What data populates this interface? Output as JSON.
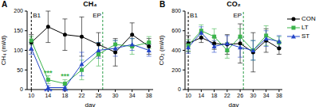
{
  "chart_data": [
    {
      "type": "line",
      "panel_label": "A",
      "title": "CH₄",
      "x_label": "day",
      "y_label": "CH₄ (ml/d)",
      "x": [
        10,
        14,
        18,
        22,
        26,
        30,
        34,
        38
      ],
      "xlim": [
        9,
        39
      ],
      "xticks": [
        10,
        14,
        18,
        22,
        26,
        30,
        34,
        38
      ],
      "ylim": [
        0,
        200
      ],
      "yticks": [
        0,
        50,
        100,
        150,
        200
      ],
      "series": [
        {
          "name": "CON",
          "color": "#000000",
          "marker": "circle",
          "values": [
            120,
            160,
            140,
            135,
            115,
            95,
            140,
            110
          ],
          "errors": [
            20,
            40,
            40,
            50,
            30,
            35,
            30,
            20
          ]
        },
        {
          "name": "LT",
          "color": "#3cb44b",
          "marker": "square",
          "values": [
            125,
            25,
            15,
            50,
            90,
            115,
            110,
            120
          ],
          "errors": [
            10,
            10,
            10,
            25,
            30,
            10,
            20,
            15
          ]
        },
        {
          "name": "ST",
          "color": "#2446c8",
          "marker": "triangle",
          "values": [
            105,
            5,
            5,
            65,
            100,
            105,
            115,
            100
          ],
          "errors": [
            15,
            5,
            5,
            30,
            20,
            20,
            15,
            15
          ]
        }
      ],
      "vlines": [
        {
          "x": 10,
          "label": "B1",
          "color": "#000000",
          "line_style": "dashed"
        },
        {
          "x": 27,
          "label": "EP",
          "color": "#2e9e4a",
          "line_style": "dashed"
        }
      ],
      "annotations": [
        {
          "x": 14,
          "y": 42,
          "text": "***",
          "color": "#3cb44b"
        },
        {
          "x": 14,
          "y": -3,
          "text": "***",
          "color": "#2446c8"
        },
        {
          "x": 18,
          "y": 35,
          "text": "***",
          "color": "#3cb44b"
        },
        {
          "x": 18,
          "y": -3,
          "text": "**",
          "color": "#2446c8"
        }
      ]
    },
    {
      "type": "line",
      "panel_label": "B",
      "title": "CO₂",
      "x_label": "day",
      "y_label": "CO₂ (ml/d)",
      "x": [
        10,
        14,
        18,
        22,
        26,
        30,
        34,
        38
      ],
      "xlim": [
        9,
        39
      ],
      "xticks": [
        10,
        14,
        18,
        22,
        26,
        30,
        34,
        38
      ],
      "ylim": [
        0,
        800
      ],
      "yticks": [
        0,
        200,
        400,
        600,
        800
      ],
      "legend": "top right",
      "series": [
        {
          "name": "CON",
          "color": "#000000",
          "marker": "circle",
          "values": [
            470,
            530,
            470,
            460,
            470,
            380,
            500,
            420
          ],
          "errors": [
            80,
            50,
            60,
            100,
            200,
            200,
            120,
            60
          ]
        },
        {
          "name": "LT",
          "color": "#3cb44b",
          "marker": "square",
          "values": [
            450,
            600,
            540,
            400,
            540,
            400,
            550,
            480
          ],
          "errors": [
            60,
            60,
            80,
            80,
            80,
            100,
            100,
            60
          ]
        },
        {
          "name": "ST",
          "color": "#2446c8",
          "marker": "triangle",
          "values": [
            430,
            580,
            440,
            470,
            430,
            400,
            520,
            490
          ],
          "errors": [
            60,
            60,
            60,
            80,
            100,
            100,
            80,
            60
          ]
        }
      ],
      "vlines": [
        {
          "x": 10,
          "label": "B1",
          "color": "#000000",
          "line_style": "dashed"
        },
        {
          "x": 27,
          "label": "EP",
          "color": "#2e9e4a",
          "line_style": "dashed"
        }
      ],
      "annotations": []
    }
  ]
}
